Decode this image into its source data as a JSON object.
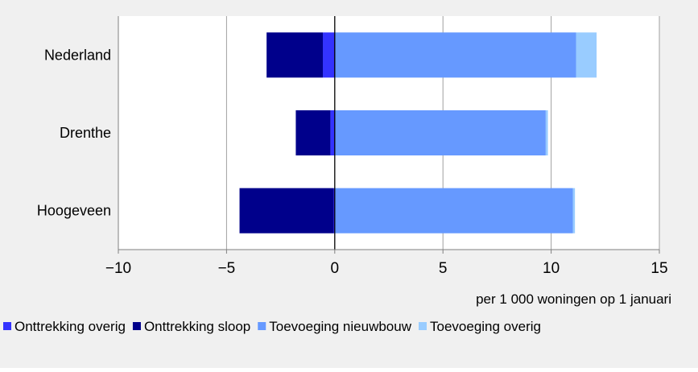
{
  "chart_data": {
    "type": "bar",
    "orientation": "horizontal",
    "stacked": true,
    "categories": [
      "Nederland",
      "Drenthe",
      "Hoogeveen"
    ],
    "series": [
      {
        "name": "Onttrekking overig",
        "color": "#3333ff",
        "values": [
          -0.55,
          -0.2,
          -0.05
        ]
      },
      {
        "name": "Onttrekking sloop",
        "color": "#00008b",
        "values": [
          -2.6,
          -1.6,
          -4.35
        ]
      },
      {
        "name": "Toevoeging nieuwbouw",
        "color": "#6699ff",
        "values": [
          11.15,
          9.75,
          11.0
        ]
      },
      {
        "name": "Toevoeging overig",
        "color": "#99ccff",
        "values": [
          0.95,
          0.1,
          0.1
        ]
      }
    ],
    "xlim": [
      -10,
      15
    ],
    "xticks": [
      "−10",
      "−5",
      "0",
      "5",
      "10",
      "15"
    ],
    "xlabel": "per 1 000 woningen op 1 januari",
    "grid": true,
    "legend_position": "bottom"
  }
}
